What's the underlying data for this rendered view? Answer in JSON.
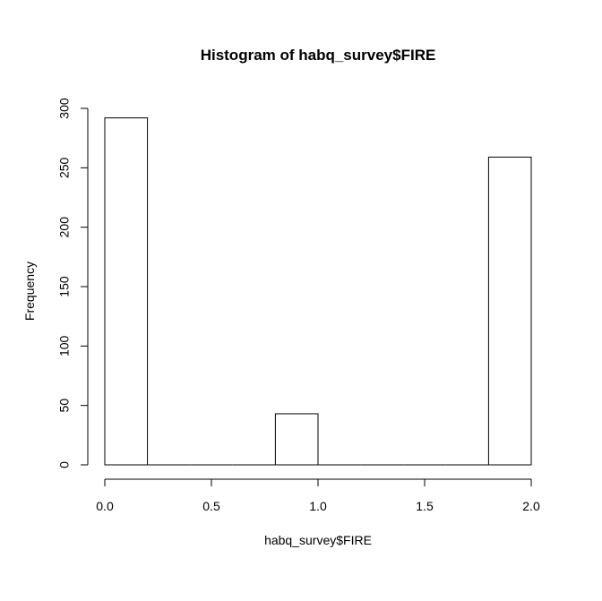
{
  "chart_data": {
    "type": "bar",
    "title": "Histogram of habq_survey$FIRE",
    "xlabel": "habq_survey$FIRE",
    "ylabel": "Frequency",
    "bins": [
      {
        "start": 0.0,
        "end": 0.2,
        "count": 292
      },
      {
        "start": 0.2,
        "end": 0.4,
        "count": 0
      },
      {
        "start": 0.4,
        "end": 0.6,
        "count": 0
      },
      {
        "start": 0.6,
        "end": 0.8,
        "count": 0
      },
      {
        "start": 0.8,
        "end": 1.0,
        "count": 43
      },
      {
        "start": 1.0,
        "end": 1.2,
        "count": 0
      },
      {
        "start": 1.2,
        "end": 1.4,
        "count": 0
      },
      {
        "start": 1.4,
        "end": 1.6,
        "count": 0
      },
      {
        "start": 1.6,
        "end": 1.8,
        "count": 0
      },
      {
        "start": 1.8,
        "end": 2.0,
        "count": 259
      }
    ],
    "xlim": [
      0,
      2
    ],
    "ylim": [
      0,
      300
    ],
    "x_ticks": [
      0.0,
      0.5,
      1.0,
      1.5,
      2.0
    ],
    "x_tick_labels": [
      "0.0",
      "0.5",
      "1.0",
      "1.5",
      "2.0"
    ],
    "y_ticks": [
      0,
      50,
      100,
      150,
      200,
      250,
      300
    ],
    "y_tick_labels": [
      "0",
      "50",
      "100",
      "150",
      "200",
      "250",
      "300"
    ],
    "grid": false,
    "legend": "none"
  }
}
